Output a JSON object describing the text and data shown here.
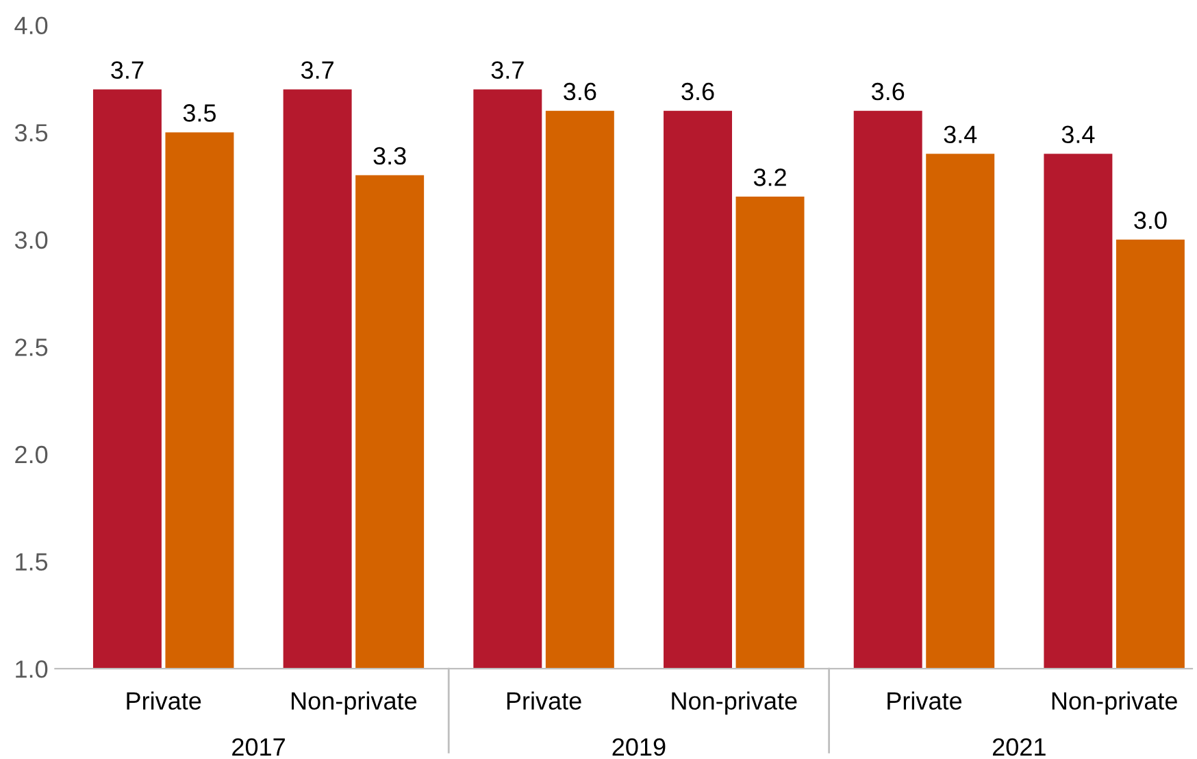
{
  "chart_data": {
    "type": "bar",
    "categories": [
      "Private",
      "Non-private",
      "Private",
      "Non-private",
      "Private",
      "Non-private"
    ],
    "series": [
      {
        "color": "#b5192d",
        "values": [
          3.7,
          3.7,
          3.7,
          3.6,
          3.6,
          3.4
        ],
        "value_labels": [
          "3.7",
          "3.7",
          "3.7",
          "3.6",
          "3.6",
          "3.4"
        ]
      },
      {
        "color": "#d46300",
        "values": [
          3.5,
          3.3,
          3.6,
          3.2,
          3.4,
          3.0
        ],
        "value_labels": [
          "3.5",
          "3.3",
          "3.6",
          "3.2",
          "3.4",
          "3.0"
        ]
      }
    ],
    "ylim": [
      1.0,
      4.0
    ],
    "yticks": [
      {
        "value": 1.0,
        "label": "1.0"
      },
      {
        "value": 1.5,
        "label": "1.5"
      },
      {
        "value": 2.0,
        "label": "2.0"
      },
      {
        "value": 2.5,
        "label": "2.5"
      },
      {
        "value": 3.0,
        "label": "3.0"
      },
      {
        "value": 3.5,
        "label": "3.5"
      },
      {
        "value": 4.0,
        "label": "4.0"
      }
    ],
    "annotations": [
      "2017",
      "2019",
      "2021"
    ],
    "grid": false
  }
}
